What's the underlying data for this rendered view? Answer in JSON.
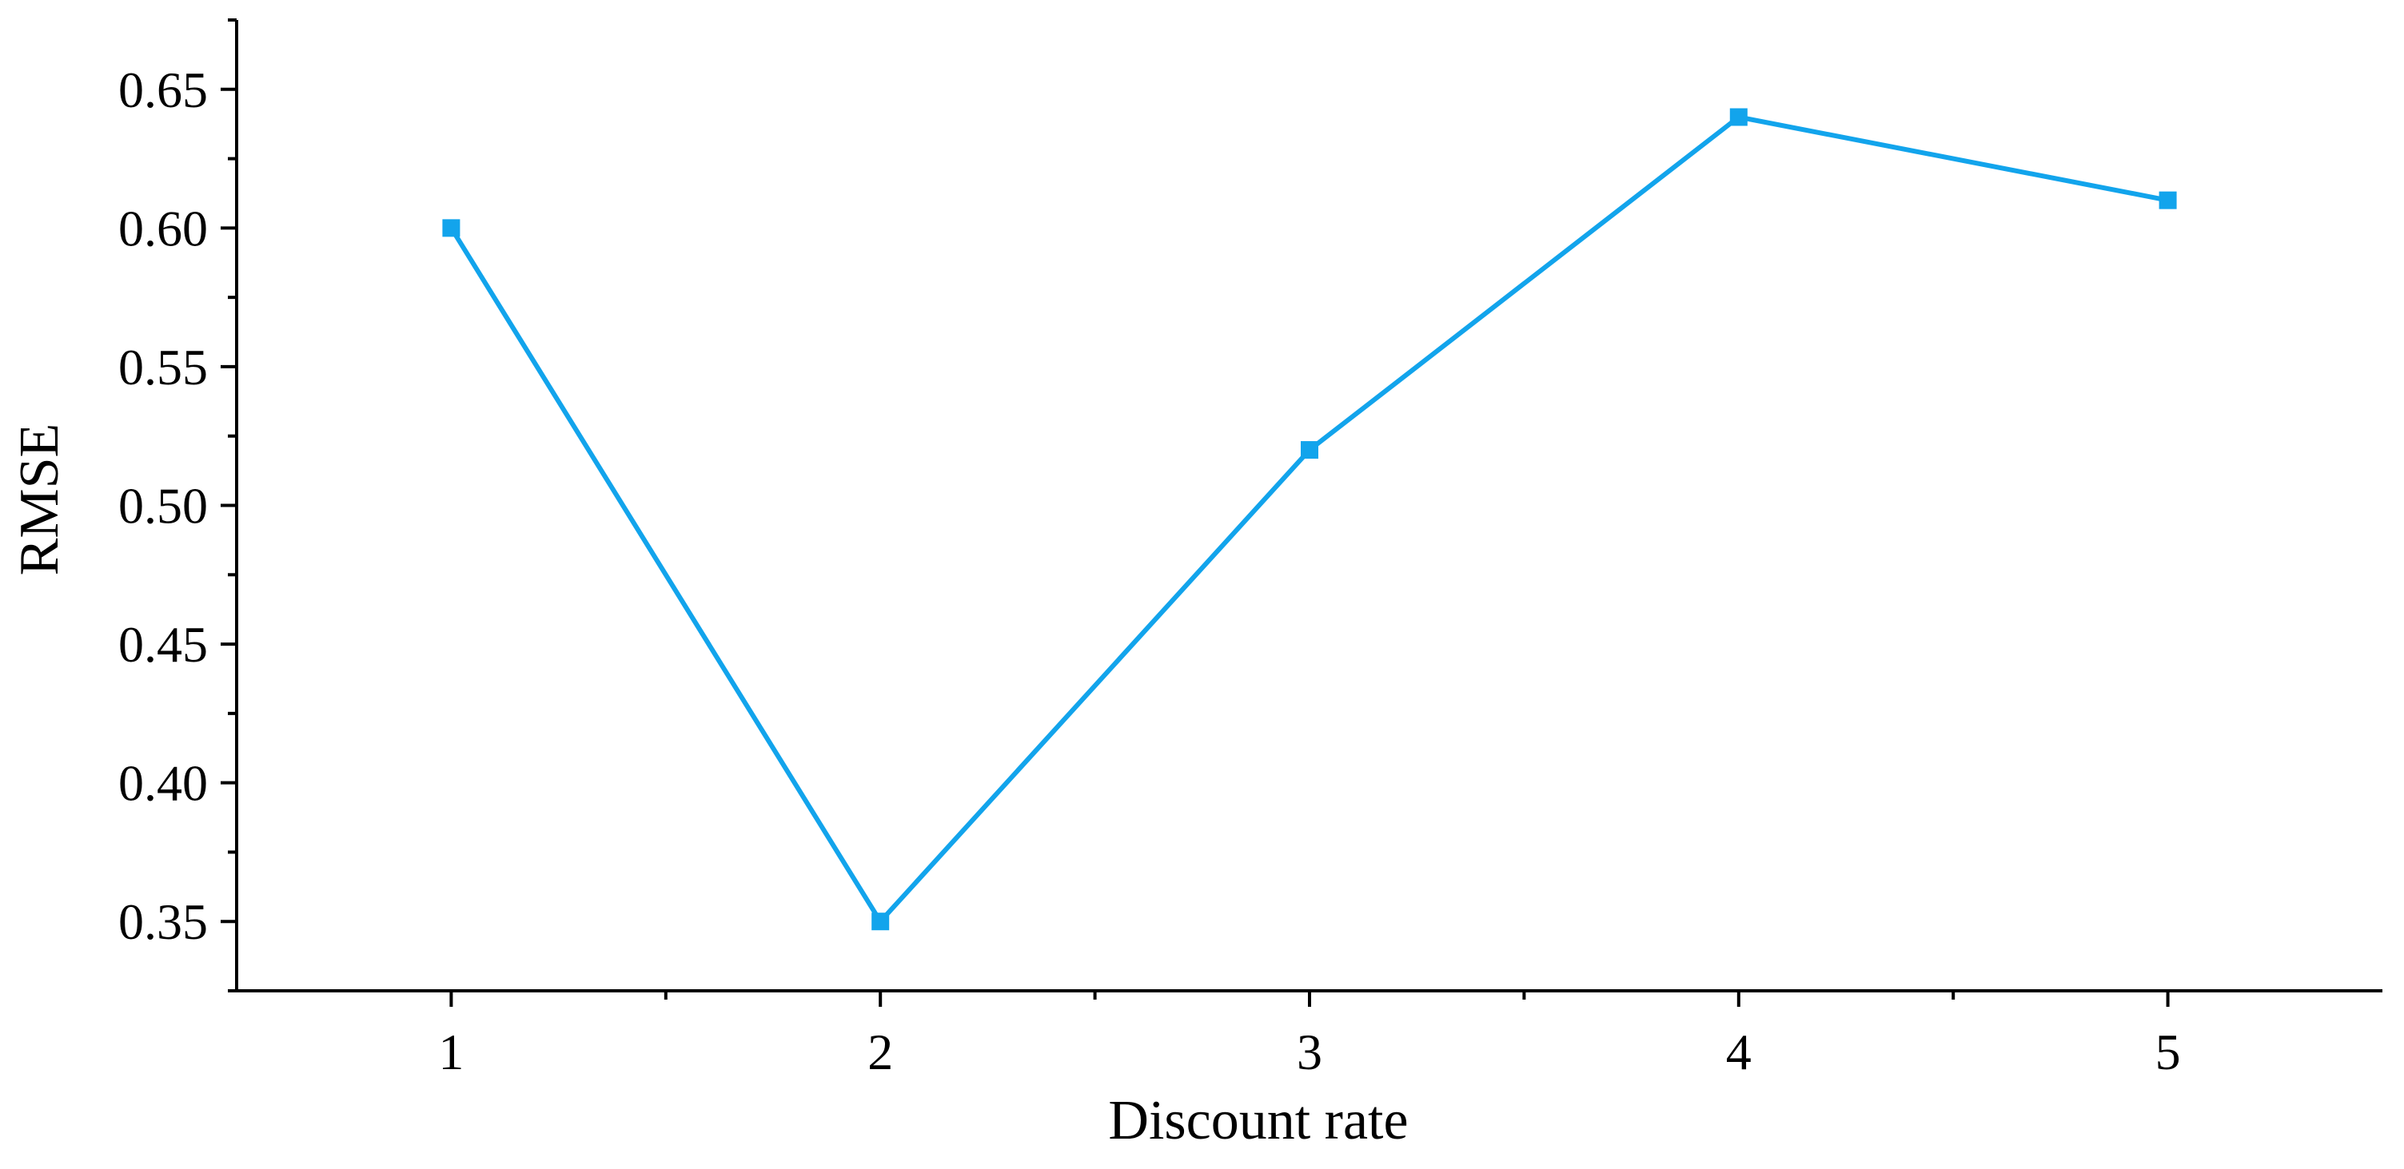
{
  "chart_data": {
    "type": "line",
    "title": "",
    "xlabel": "Discount rate",
    "ylabel": "RMSE",
    "x": [
      1,
      2,
      3,
      4,
      5
    ],
    "x_tick_labels": [
      "1",
      "2",
      "3",
      "4",
      "5"
    ],
    "y_tick_labels": [
      "0.35",
      "0.40",
      "0.45",
      "0.50",
      "0.55",
      "0.60",
      "0.65"
    ],
    "y_ticks": [
      0.35,
      0.4,
      0.45,
      0.5,
      0.55,
      0.6,
      0.65
    ],
    "xlim": [
      0.5,
      5.5
    ],
    "ylim": [
      0.325,
      0.675
    ],
    "grid": false,
    "legend": "none",
    "series": [
      {
        "values": [
          0.6,
          0.35,
          0.52,
          0.64,
          0.61
        ],
        "color": "#12A4EC",
        "marker": "square"
      }
    ]
  }
}
